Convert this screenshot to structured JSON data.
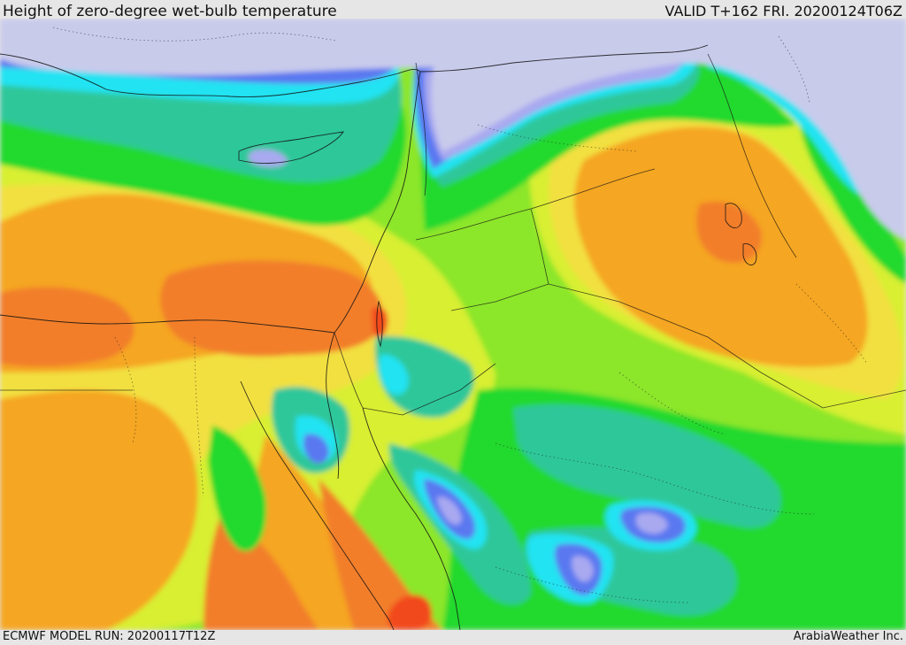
{
  "header": {
    "title": "Height of zero-degree wet-bulb temperature",
    "valid": "VALID T+162 FRI. 20200124T06Z"
  },
  "footer": {
    "model_run": "ECMWF MODEL RUN: 20200117T12Z",
    "credit": "ArabiaWeather Inc."
  },
  "colors": {
    "background": "#e6e6e6",
    "sea_snow": "#c9cbeb",
    "lavender": "#a9a9f0",
    "blue": "#5a78f0",
    "cyan": "#22e3f2",
    "teal": "#2ec79a",
    "green": "#22d92e",
    "light_green": "#8ce62c",
    "yellow_green": "#d8ef30",
    "yellow": "#f2e040",
    "orange": "#f5a623",
    "dark_orange": "#f27e2a",
    "red_orange": "#f24a1a"
  }
}
